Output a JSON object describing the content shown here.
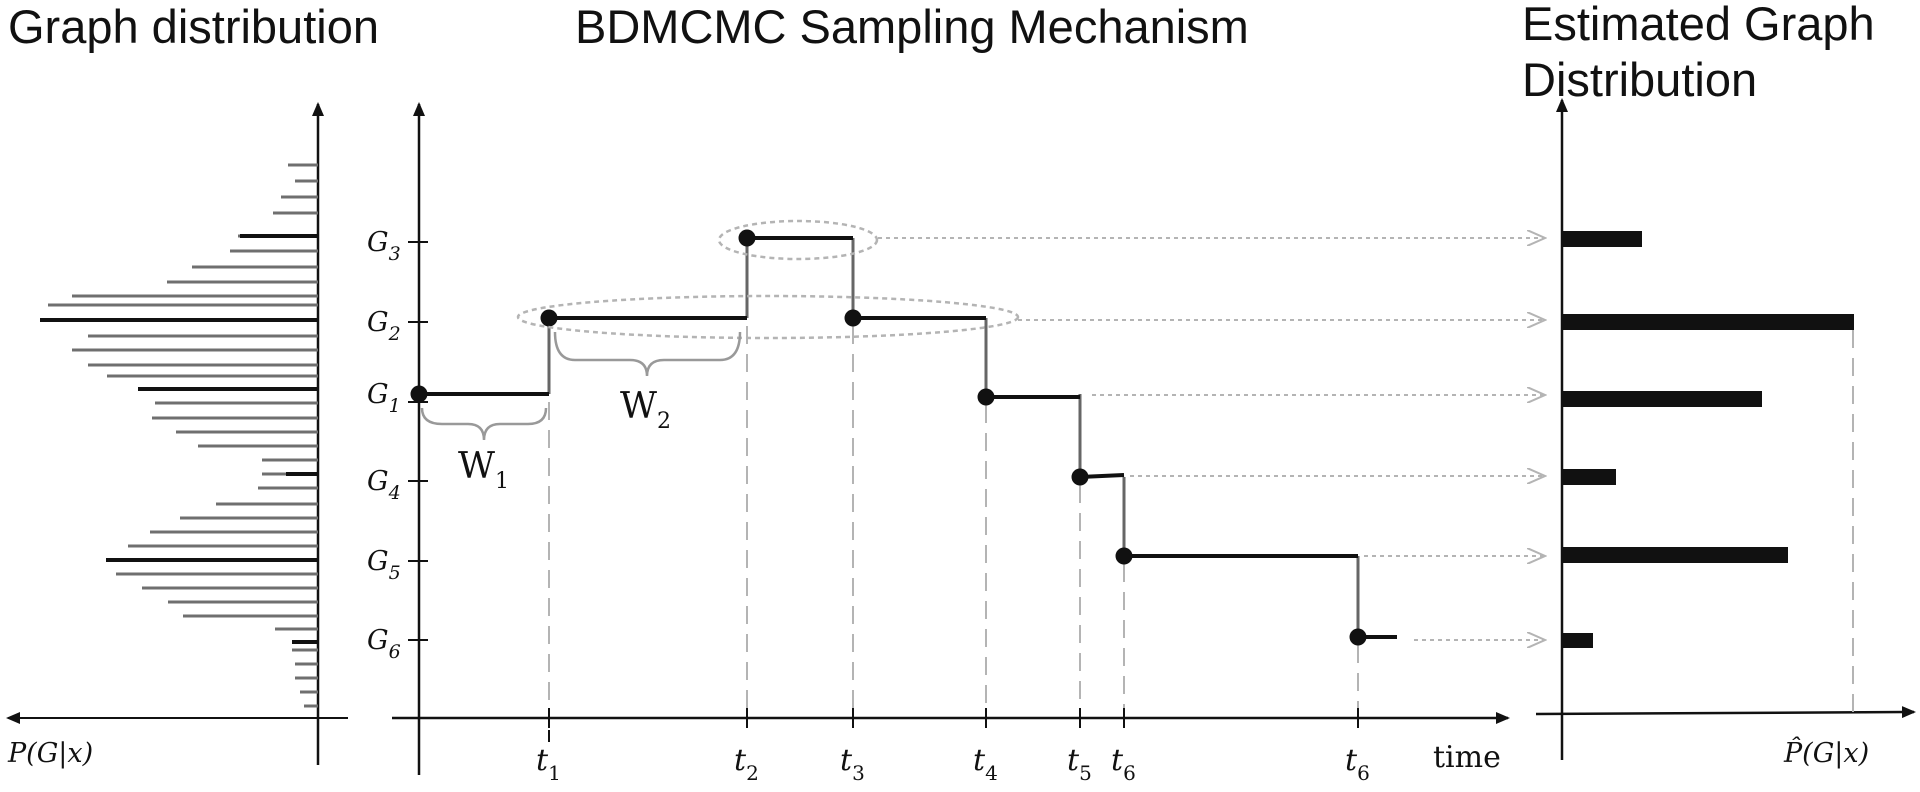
{
  "titles": {
    "left": "Graph distribution",
    "middle": "BDMCMC Sampling Mechanism",
    "right_line1": "Estimated Graph",
    "right_line2": "Distribution"
  },
  "axis_labels": {
    "left_x": "P(G|x)",
    "middle_x": "time",
    "right_x": "P̂(G|x)"
  },
  "graph_labels": [
    {
      "name": "G",
      "sub": "3"
    },
    {
      "name": "G",
      "sub": "2"
    },
    {
      "name": "G",
      "sub": "1"
    },
    {
      "name": "G",
      "sub": "4"
    },
    {
      "name": "G",
      "sub": "5"
    },
    {
      "name": "G",
      "sub": "6"
    }
  ],
  "time_labels": [
    {
      "name": "t",
      "sub": "1"
    },
    {
      "name": "t",
      "sub": "2"
    },
    {
      "name": "t",
      "sub": "3"
    },
    {
      "name": "t",
      "sub": "4"
    },
    {
      "name": "t",
      "sub": "5"
    },
    {
      "name": "t",
      "sub": "6"
    },
    {
      "name": "t",
      "sub": "6"
    }
  ],
  "waiting_labels": [
    {
      "name": "W",
      "sub": "1"
    },
    {
      "name": "W",
      "sub": "2"
    }
  ],
  "colors": {
    "ink": "#111111",
    "gray": "#777777",
    "light_gray": "#b4b4b4"
  }
}
